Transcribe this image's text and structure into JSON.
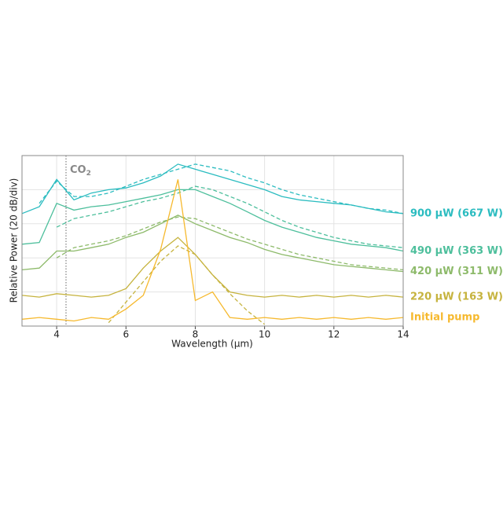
{
  "chart_data": {
    "type": "line",
    "xlabel": "Wavelength (μm)",
    "ylabel": "Relative Power (20 dB/div)",
    "x": [
      3,
      3.5,
      4,
      4.5,
      5,
      5.5,
      6,
      6.5,
      7,
      7.5,
      8,
      8.5,
      9,
      9.5,
      10,
      10.5,
      11,
      11.5,
      12,
      12.5,
      13,
      13.5,
      14
    ],
    "xlim": [
      3,
      14
    ],
    "xticks": [
      4,
      6,
      8,
      10,
      12,
      14
    ],
    "ylim": [
      0,
      100
    ],
    "ygrid": [
      20,
      40,
      60,
      80
    ],
    "grid": true,
    "annotation": {
      "text": "CO",
      "sub": "2",
      "x": 4.27
    },
    "series": [
      {
        "name": "900 μW (667 W)",
        "color": "#2bbcc0",
        "values": [
          66,
          70,
          86,
          74,
          78,
          80,
          81,
          84,
          88,
          95,
          92,
          89,
          86,
          83,
          80,
          76,
          74,
          73,
          72,
          71,
          69,
          67,
          66
        ],
        "fit": [
          null,
          72,
          85,
          76,
          76,
          78,
          82,
          86,
          89,
          92,
          95,
          93,
          91,
          87,
          84,
          80,
          77,
          75,
          73,
          71,
          69,
          68,
          66
        ]
      },
      {
        "name": "490 μW (363 W)",
        "color": "#4dbf9c",
        "values": [
          48,
          49,
          72,
          68,
          70,
          71,
          73,
          75,
          77,
          80,
          80,
          76,
          72,
          67,
          62,
          58,
          55,
          52,
          50,
          48,
          47,
          46,
          44
        ],
        "fit": [
          null,
          null,
          58,
          63,
          65,
          67,
          70,
          73,
          75,
          78,
          82,
          80,
          76,
          72,
          67,
          62,
          58,
          55,
          52,
          50,
          48,
          47,
          46
        ]
      },
      {
        "name": "420 μW (311 W)",
        "color": "#8dba6a",
        "values": [
          33,
          34,
          44,
          44,
          46,
          48,
          52,
          55,
          60,
          65,
          60,
          56,
          52,
          49,
          45,
          42,
          40,
          38,
          36,
          35,
          34,
          33,
          32
        ],
        "fit": [
          null,
          null,
          40,
          46,
          48,
          50,
          53,
          57,
          61,
          64,
          63,
          59,
          55,
          51,
          48,
          45,
          42,
          40,
          38,
          36,
          35,
          34,
          33
        ]
      },
      {
        "name": "220 μW (163 W)",
        "color": "#c6b33e",
        "values": [
          18,
          17,
          19,
          18,
          17,
          18,
          22,
          34,
          44,
          52,
          42,
          30,
          20,
          18,
          17,
          18,
          17,
          18,
          17,
          18,
          17,
          18,
          17
        ],
        "fit": [
          null,
          null,
          null,
          null,
          null,
          2,
          14,
          26,
          38,
          47,
          42,
          30,
          19,
          9,
          1,
          null,
          null,
          null,
          null,
          null,
          null,
          null,
          null
        ]
      },
      {
        "name": "Initial pump",
        "color": "#f6b92e",
        "values": [
          4,
          5,
          4,
          3,
          5,
          4,
          10,
          18,
          45,
          86,
          15,
          20,
          5,
          4,
          5,
          4,
          5,
          4,
          5,
          4,
          5,
          4,
          5
        ]
      }
    ]
  }
}
